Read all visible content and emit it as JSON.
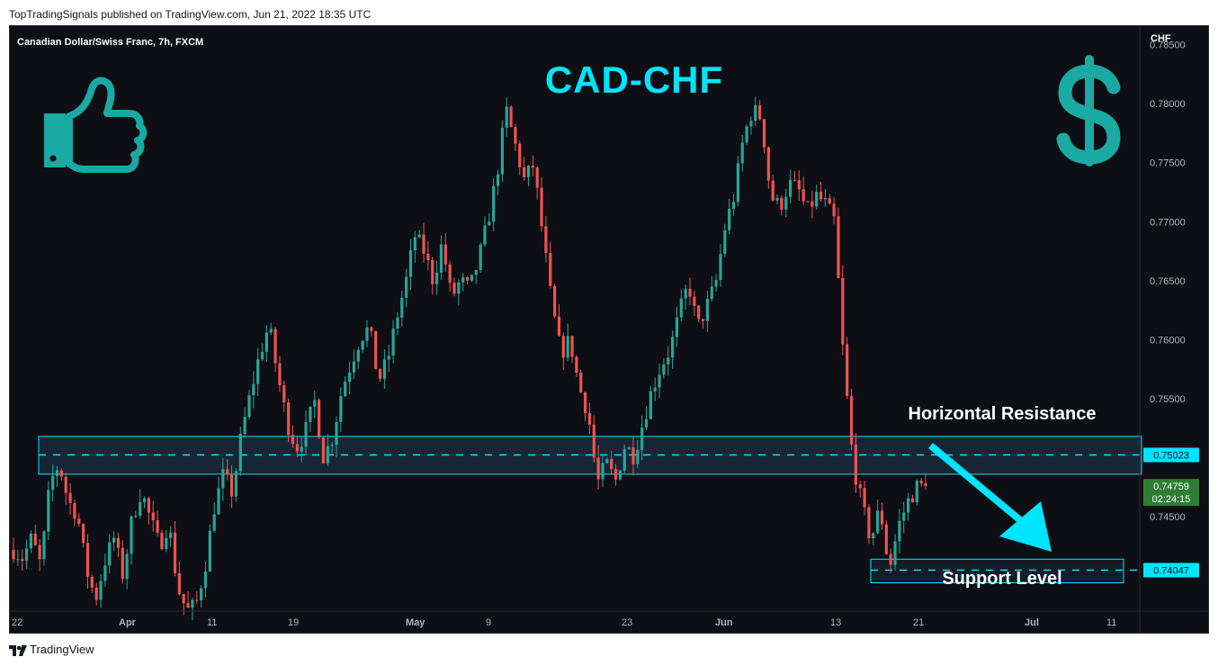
{
  "header": {
    "published_by": "TopTradingSignals published on TradingView.com, Jun 21, 2022 18:35 UTC"
  },
  "chart_header": {
    "symbol": "Canadian Dollar/Swiss Franc, 7h, FXCM",
    "currency": "CHF"
  },
  "overlay": {
    "title": "CAD-CHF",
    "resistance_label": "Horizontal Resistance",
    "support_label": "Support Level",
    "accent_color": "#00e5ff",
    "icon_color": "#1aa9a3",
    "icons": [
      "thumbs-up-icon",
      "dollar-sign-icon"
    ]
  },
  "footer": {
    "brand": "TradingView"
  },
  "colors": {
    "background": "#0d0f14",
    "up": "#26a69a",
    "down": "#ef5350",
    "axis_text": "#b2b5be"
  },
  "chart_data": {
    "type": "candlestick",
    "title": "",
    "y_axis": {
      "range": [
        0.737,
        0.7855
      ],
      "ticks": [
        "0.74500",
        "0.75000",
        "0.75500",
        "0.76000",
        "0.76500",
        "0.77000",
        "0.77500",
        "0.78000",
        "0.78500"
      ]
    },
    "x_axis": {
      "ticks": [
        "22",
        "Apr",
        "11",
        "19",
        "May",
        "9",
        "23",
        "Jun",
        "13",
        "21",
        "Jul",
        "11"
      ]
    },
    "levels": {
      "resistance": {
        "value": 0.75023,
        "label": "0.75023",
        "zone": [
          0.7486,
          0.7518
        ]
      },
      "support": {
        "value": 0.74047,
        "label": "0.74047",
        "zone": [
          0.7394,
          0.7414
        ]
      }
    },
    "last_price": {
      "label": "0.74759",
      "countdown": "02:24:15",
      "value": 0.74759
    },
    "path": [
      0.7422,
      0.7415,
      0.7432,
      0.7408,
      0.7478,
      0.7495,
      0.7463,
      0.7452,
      0.7405,
      0.738,
      0.7412,
      0.7432,
      0.74,
      0.7448,
      0.7472,
      0.7448,
      0.7425,
      0.7445,
      0.739,
      0.737,
      0.7375,
      0.7408,
      0.7458,
      0.7485,
      0.747,
      0.752,
      0.7555,
      0.7588,
      0.7612,
      0.7568,
      0.753,
      0.7508,
      0.7522,
      0.7548,
      0.75,
      0.7518,
      0.7558,
      0.758,
      0.7602,
      0.761,
      0.7565,
      0.7582,
      0.7618,
      0.7648,
      0.7688,
      0.7675,
      0.765,
      0.7682,
      0.7635,
      0.765,
      0.7642,
      0.7668,
      0.77,
      0.774,
      0.7795,
      0.7765,
      0.7735,
      0.7748,
      0.769,
      0.763,
      0.7588,
      0.76,
      0.756,
      0.7538,
      0.7478,
      0.7495,
      0.748,
      0.751,
      0.7502,
      0.753,
      0.7558,
      0.7578,
      0.7592,
      0.7622,
      0.7648,
      0.761,
      0.7628,
      0.7648,
      0.7695,
      0.7722,
      0.777,
      0.7795,
      0.7788,
      0.7722,
      0.7712,
      0.7732,
      0.7728,
      0.7708,
      0.7722,
      0.7715,
      0.77,
      0.7582,
      0.7498,
      0.746,
      0.743,
      0.7458,
      0.7405,
      0.7442,
      0.7462,
      0.7475,
      0.7476
    ]
  }
}
